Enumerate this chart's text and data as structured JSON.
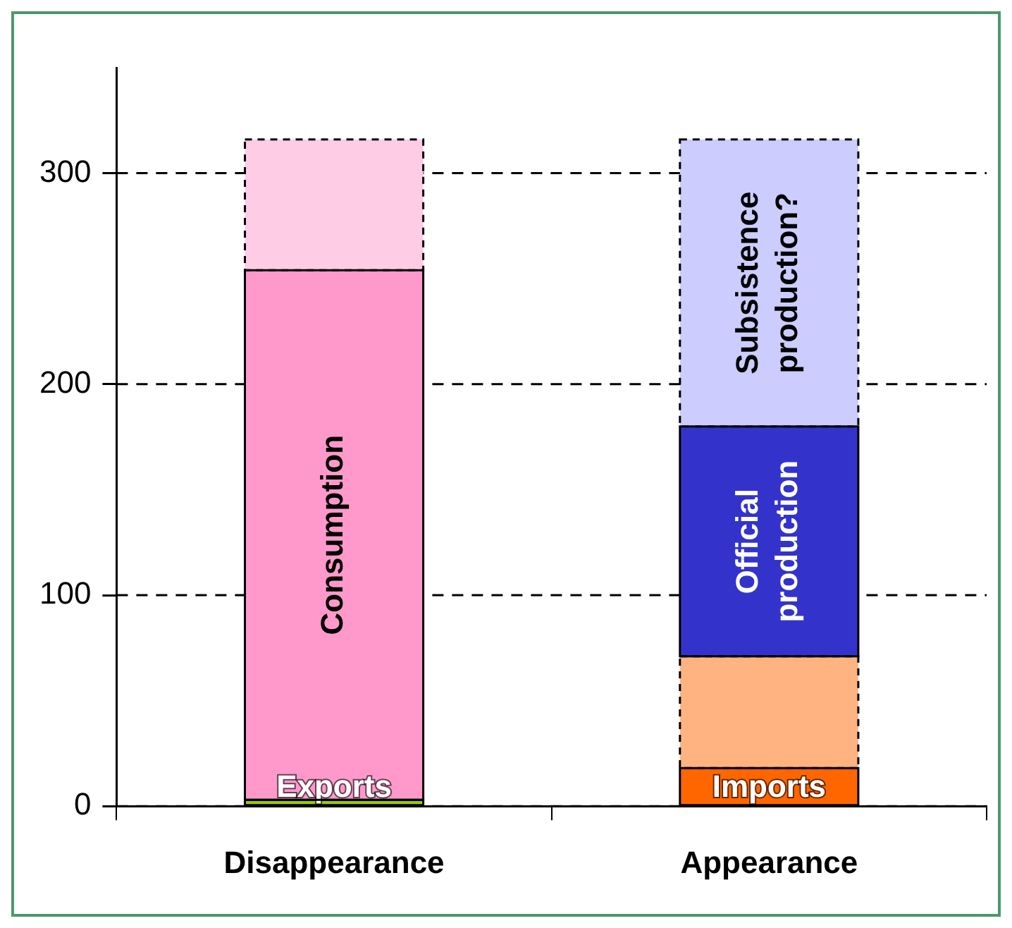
{
  "chart_data": {
    "type": "bar",
    "stacked": true,
    "categories": [
      "Disappearance",
      "Appearance"
    ],
    "series": [
      {
        "name": "Exports",
        "color": "#99cc00",
        "values": [
          3,
          null
        ]
      },
      {
        "name": "Consumption",
        "color": "#ff99cc",
        "values": [
          251,
          null
        ]
      },
      {
        "color": "#ffcce6",
        "values": [
          62,
          null
        ],
        "line_style": "dashed"
      },
      {
        "name": "Imports",
        "color": "#ff6600",
        "values": [
          null,
          18
        ]
      },
      {
        "color": "#ffb380",
        "values": [
          null,
          53
        ],
        "line_style": "dashed"
      },
      {
        "name": "Official production",
        "color": "#3333cc",
        "values": [
          null,
          109
        ]
      },
      {
        "name": "Subsistence production?",
        "color": "#ccccff",
        "values": [
          null,
          136
        ],
        "line_style": "dashed"
      }
    ],
    "ylim": [
      0,
      350
    ],
    "yticks": [
      0,
      100,
      200,
      300
    ],
    "grid": "y",
    "legend": false
  }
}
